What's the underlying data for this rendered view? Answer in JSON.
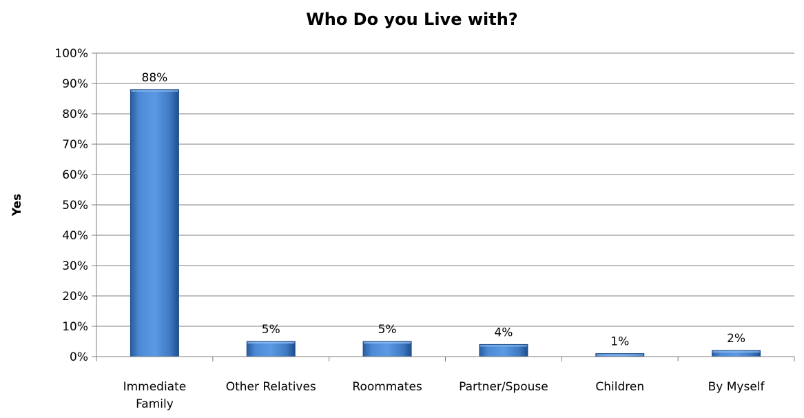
{
  "chart_data": {
    "type": "bar",
    "title": "Who Do you Live with?",
    "xlabel": "",
    "ylabel": "Yes",
    "categories": [
      "Immediate Family",
      "Other Relatives",
      "Roommates",
      "Partner/Spouse",
      "Children",
      "By Myself"
    ],
    "values": [
      88,
      5,
      5,
      4,
      1,
      2
    ],
    "data_labels": [
      "88%",
      "5%",
      "5%",
      "4%",
      "1%",
      "2%"
    ],
    "ylim": [
      0,
      100
    ],
    "y_ticks": [
      "0%",
      "10%",
      "20%",
      "30%",
      "40%",
      "50%",
      "60%",
      "70%",
      "80%",
      "90%",
      "100%"
    ],
    "grid": true,
    "legend": "none",
    "colors": {
      "bar": "#4a86cf",
      "bar_dark": "#1f4e8c",
      "grid": "#7f7f7f"
    }
  }
}
